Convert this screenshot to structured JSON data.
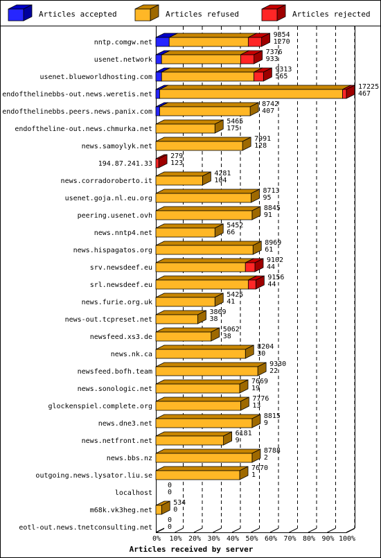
{
  "chart_data": {
    "type": "bar",
    "orientation": "horizontal",
    "stacked": true,
    "title": "",
    "xlabel": "Articles received by server",
    "ylabel": "",
    "xlim": [
      0,
      100
    ],
    "x_ticks": [
      "0%",
      "10%",
      "20%",
      "30%",
      "40%",
      "50%",
      "60%",
      "70%",
      "80%",
      "90%",
      "100%"
    ],
    "grid": true,
    "legend_position": "top",
    "colors": {
      "accepted": "#0000ff",
      "refused": "#ffaa00",
      "rejected": "#ff0000"
    },
    "series": [
      {
        "name": "Articles accepted"
      },
      {
        "name": "Articles refused"
      },
      {
        "name": "Articles rejected"
      }
    ],
    "bars": [
      {
        "server": "nntp.comgw.net",
        "accepted_pct": 7,
        "refused_pct": 41.5,
        "rejected_pct": 7,
        "label_top": "9354",
        "label_bottom": "1270"
      },
      {
        "server": "usenet.network",
        "accepted_pct": 3,
        "refused_pct": 41.5,
        "rejected_pct": 7,
        "label_top": "7376",
        "label_bottom": "933"
      },
      {
        "server": "usenet.blueworldhosting.com",
        "accepted_pct": 3,
        "refused_pct": 48.5,
        "rejected_pct": 5,
        "label_top": "9313",
        "label_bottom": "565"
      },
      {
        "server": "endofthelinebbs-out.news.weretis.net",
        "accepted_pct": 2,
        "refused_pct": 96,
        "rejected_pct": 2,
        "label_top": "17225",
        "label_bottom": "467"
      },
      {
        "server": "endofthelinebbs.peers.news.panix.com",
        "accepted_pct": 2,
        "refused_pct": 47.5,
        "rejected_pct": 0,
        "label_top": "8742",
        "label_bottom": "407"
      },
      {
        "server": "endoftheline-out.news.chmurka.net",
        "accepted_pct": 0,
        "refused_pct": 31,
        "rejected_pct": 0,
        "label_top": "5465",
        "label_bottom": "175"
      },
      {
        "server": "news.samoylyk.net",
        "accepted_pct": 0,
        "refused_pct": 45.5,
        "rejected_pct": 0,
        "label_top": "7991",
        "label_bottom": "128"
      },
      {
        "server": "194.87.241.33",
        "accepted_pct": 0,
        "refused_pct": 0,
        "rejected_pct": 1.5,
        "label_top": "279",
        "label_bottom": "123"
      },
      {
        "server": "news.corradoroberto.it",
        "accepted_pct": 0,
        "refused_pct": 24.5,
        "rejected_pct": 0,
        "label_top": "4281",
        "label_bottom": "104"
      },
      {
        "server": "usenet.goja.nl.eu.org",
        "accepted_pct": 0,
        "refused_pct": 50,
        "rejected_pct": 0,
        "label_top": "8713",
        "label_bottom": "95"
      },
      {
        "server": "peering.usenet.ovh",
        "accepted_pct": 0,
        "refused_pct": 50.5,
        "rejected_pct": 0,
        "label_top": "8845",
        "label_bottom": "91"
      },
      {
        "server": "news.nntp4.net",
        "accepted_pct": 0,
        "refused_pct": 31,
        "rejected_pct": 0,
        "label_top": "5452",
        "label_bottom": "66"
      },
      {
        "server": "news.hispagatos.org",
        "accepted_pct": 0,
        "refused_pct": 51,
        "rejected_pct": 0,
        "label_top": "8969",
        "label_bottom": "61"
      },
      {
        "server": "srv.newsdeef.eu",
        "accepted_pct": 0,
        "refused_pct": 47,
        "rejected_pct": 5,
        "label_top": "9102",
        "label_bottom": "44"
      },
      {
        "server": "srl.newsdeef.eu",
        "accepted_pct": 0,
        "refused_pct": 48.5,
        "rejected_pct": 4,
        "label_top": "9156",
        "label_bottom": "44"
      },
      {
        "server": "news.furie.org.uk",
        "accepted_pct": 0,
        "refused_pct": 31,
        "rejected_pct": 0,
        "label_top": "5425",
        "label_bottom": "41"
      },
      {
        "server": "news-out.tcpreset.net",
        "accepted_pct": 0,
        "refused_pct": 22,
        "rejected_pct": 0,
        "label_top": "3869",
        "label_bottom": "38"
      },
      {
        "server": "newsfeed.xs3.de",
        "accepted_pct": 0,
        "refused_pct": 29,
        "rejected_pct": 0,
        "label_top": "5062",
        "label_bottom": "38"
      },
      {
        "server": "news.nk.ca",
        "accepted_pct": 0,
        "refused_pct": 47,
        "rejected_pct": 0,
        "label_top": "8204",
        "label_bottom": "30"
      },
      {
        "server": "newsfeed.bofh.team",
        "accepted_pct": 0,
        "refused_pct": 53.5,
        "rejected_pct": 0,
        "label_top": "9330",
        "label_bottom": "22"
      },
      {
        "server": "news.sonologic.net",
        "accepted_pct": 0,
        "refused_pct": 44,
        "rejected_pct": 0,
        "label_top": "7669",
        "label_bottom": "19"
      },
      {
        "server": "glockenspiel.complete.org",
        "accepted_pct": 0,
        "refused_pct": 44.5,
        "rejected_pct": 0,
        "label_top": "7776",
        "label_bottom": "13"
      },
      {
        "server": "news.dne3.net",
        "accepted_pct": 0,
        "refused_pct": 50.5,
        "rejected_pct": 0,
        "label_top": "8815",
        "label_bottom": "9"
      },
      {
        "server": "news.netfront.net",
        "accepted_pct": 0,
        "refused_pct": 35.5,
        "rejected_pct": 0,
        "label_top": "6181",
        "label_bottom": "9"
      },
      {
        "server": "news.bbs.nz",
        "accepted_pct": 0,
        "refused_pct": 50.5,
        "rejected_pct": 0,
        "label_top": "8788",
        "label_bottom": "2"
      },
      {
        "server": "outgoing.news.lysator.liu.se",
        "accepted_pct": 0,
        "refused_pct": 44,
        "rejected_pct": 0,
        "label_top": "7670",
        "label_bottom": "1"
      },
      {
        "server": "localhost",
        "accepted_pct": 0,
        "refused_pct": 0,
        "rejected_pct": 0,
        "label_top": "0",
        "label_bottom": "0"
      },
      {
        "server": "m68k.vk3heg.net",
        "accepted_pct": 0,
        "refused_pct": 3,
        "rejected_pct": 0,
        "label_top": "534",
        "label_bottom": "0"
      },
      {
        "server": "eotl-out.news.tnetconsulting.net",
        "accepted_pct": 0,
        "refused_pct": 0,
        "rejected_pct": 0,
        "label_top": "0",
        "label_bottom": "0"
      }
    ]
  }
}
